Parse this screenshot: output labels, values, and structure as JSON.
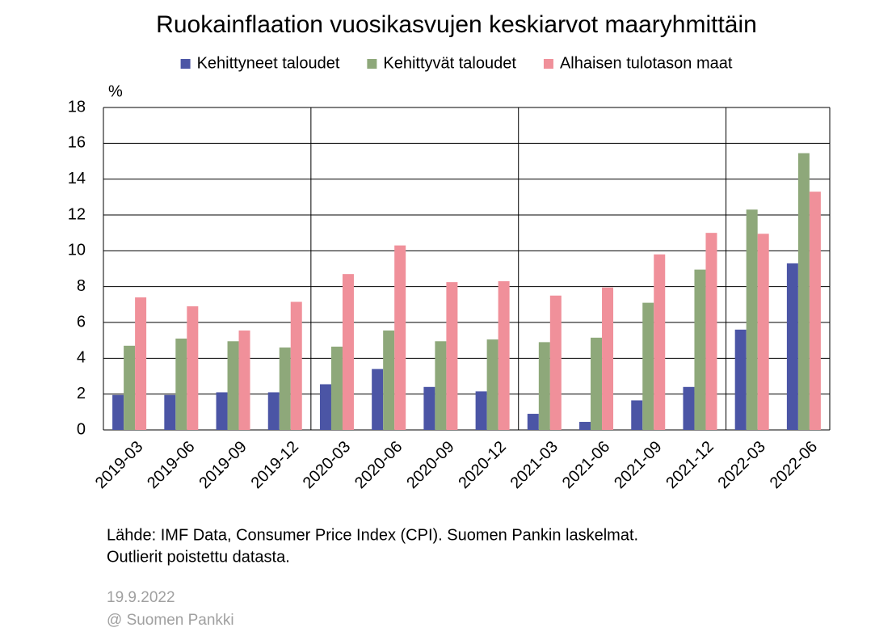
{
  "chart_data": {
    "type": "bar",
    "title": "Ruokainflaation vuosikasvujen keskiarvot maaryhmittäin",
    "y_label": "%",
    "categories": [
      "2019-03",
      "2019-06",
      "2019-09",
      "2019-12",
      "2020-03",
      "2020-06",
      "2020-09",
      "2020-12",
      "2021-03",
      "2021-06",
      "2021-09",
      "2021-12",
      "2022-03",
      "2022-06"
    ],
    "series": [
      {
        "name": "Kehittyneet taloudet",
        "color": "#4b55a5",
        "values": [
          1.95,
          1.95,
          2.1,
          2.1,
          2.55,
          3.4,
          2.4,
          2.15,
          0.9,
          0.45,
          1.65,
          2.4,
          5.6,
          9.3
        ]
      },
      {
        "name": "Kehittyvät taloudet",
        "color": "#8ea87a",
        "values": [
          4.7,
          5.1,
          4.95,
          4.6,
          4.65,
          5.55,
          4.95,
          5.05,
          4.9,
          5.15,
          7.1,
          8.95,
          12.3,
          15.45
        ]
      },
      {
        "name": "Alhaisen tulotason maat",
        "color": "#f0909a",
        "values": [
          7.4,
          6.9,
          5.55,
          7.15,
          8.7,
          10.3,
          8.25,
          8.3,
          7.5,
          7.95,
          9.8,
          11.0,
          10.95,
          13.3
        ]
      }
    ],
    "ylim": [
      0,
      18
    ],
    "yticks": [
      0,
      2,
      4,
      6,
      8,
      10,
      12,
      14,
      16,
      18
    ],
    "grid": true,
    "legend": "top",
    "notes": [
      "Lähde: IMF Data, Consumer Price Index (CPI). Suomen Pankin laskelmat.",
      "Outlierit poistettu datasta."
    ],
    "footer": [
      "19.9.2022",
      "@ Suomen Pankki"
    ]
  }
}
